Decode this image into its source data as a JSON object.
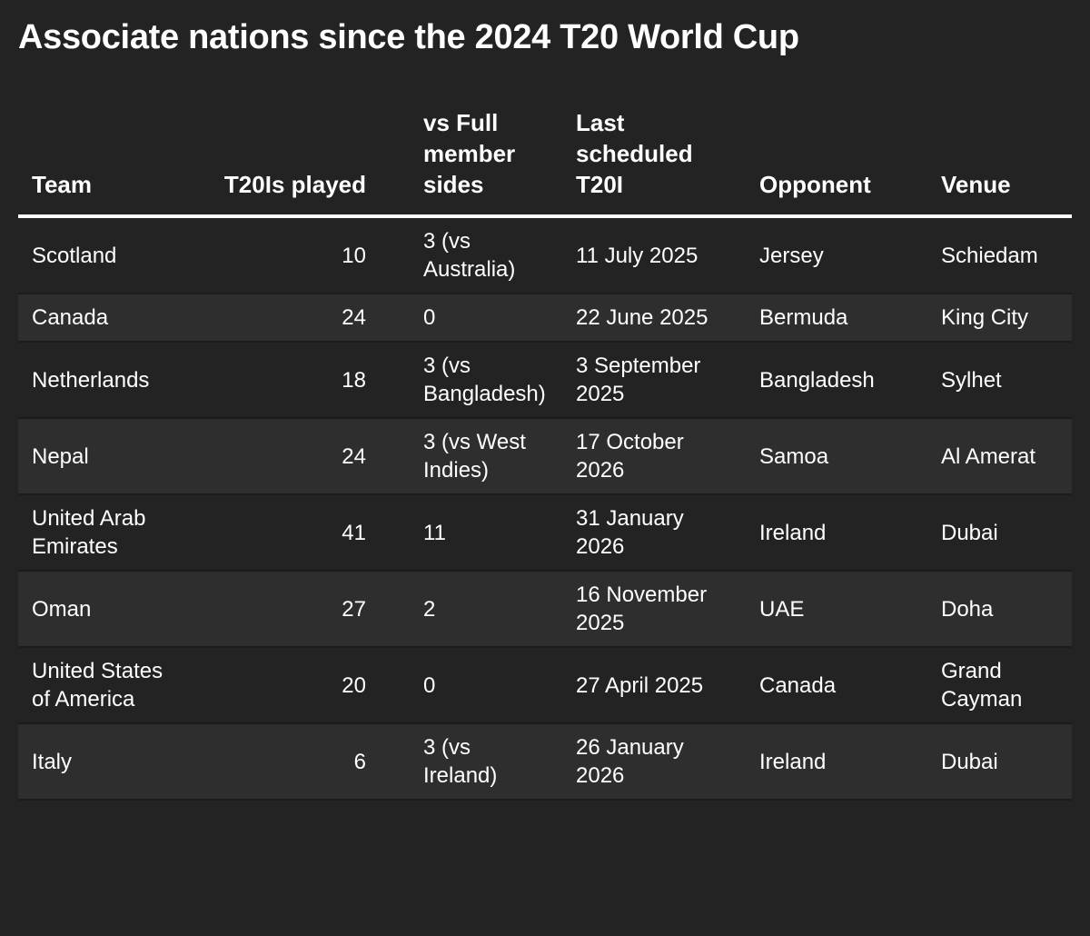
{
  "chart_data": {
    "type": "table",
    "title": "Associate nations since the 2024 T20 World Cup",
    "columns": [
      "Team",
      "T20Is played",
      "vs Full member sides",
      "Last scheduled T20I",
      "Opponent",
      "Venue"
    ],
    "rows": [
      [
        "Scotland",
        "10",
        "3 (vs Australia)",
        "11 July 2025",
        "Jersey",
        "Schiedam"
      ],
      [
        "Canada",
        "24",
        "0",
        "22 June 2025",
        "Bermuda",
        "King City"
      ],
      [
        "Netherlands",
        "18",
        "3 (vs Bangladesh)",
        "3 September 2025",
        "Bangladesh",
        "Sylhet"
      ],
      [
        "Nepal",
        "24",
        "3 (vs West Indies)",
        "17 October 2026",
        "Samoa",
        "Al Amerat"
      ],
      [
        "United Arab Emirates",
        "41",
        "11",
        "31 January 2026",
        "Ireland",
        "Dubai"
      ],
      [
        "Oman",
        "27",
        "2",
        "16 November 2025",
        "UAE",
        "Doha"
      ],
      [
        "United States of America",
        "20",
        "0",
        "27 April 2025",
        "Canada",
        "Grand Cayman"
      ],
      [
        "Italy",
        "6",
        "3 (vs Ireland)",
        "26 January 2026",
        "Ireland",
        "Dubai"
      ]
    ],
    "colors": {
      "background": "#232323",
      "row_alt": "#2e2e2e",
      "text": "#ffffff",
      "header_rule": "#ffffff"
    }
  }
}
